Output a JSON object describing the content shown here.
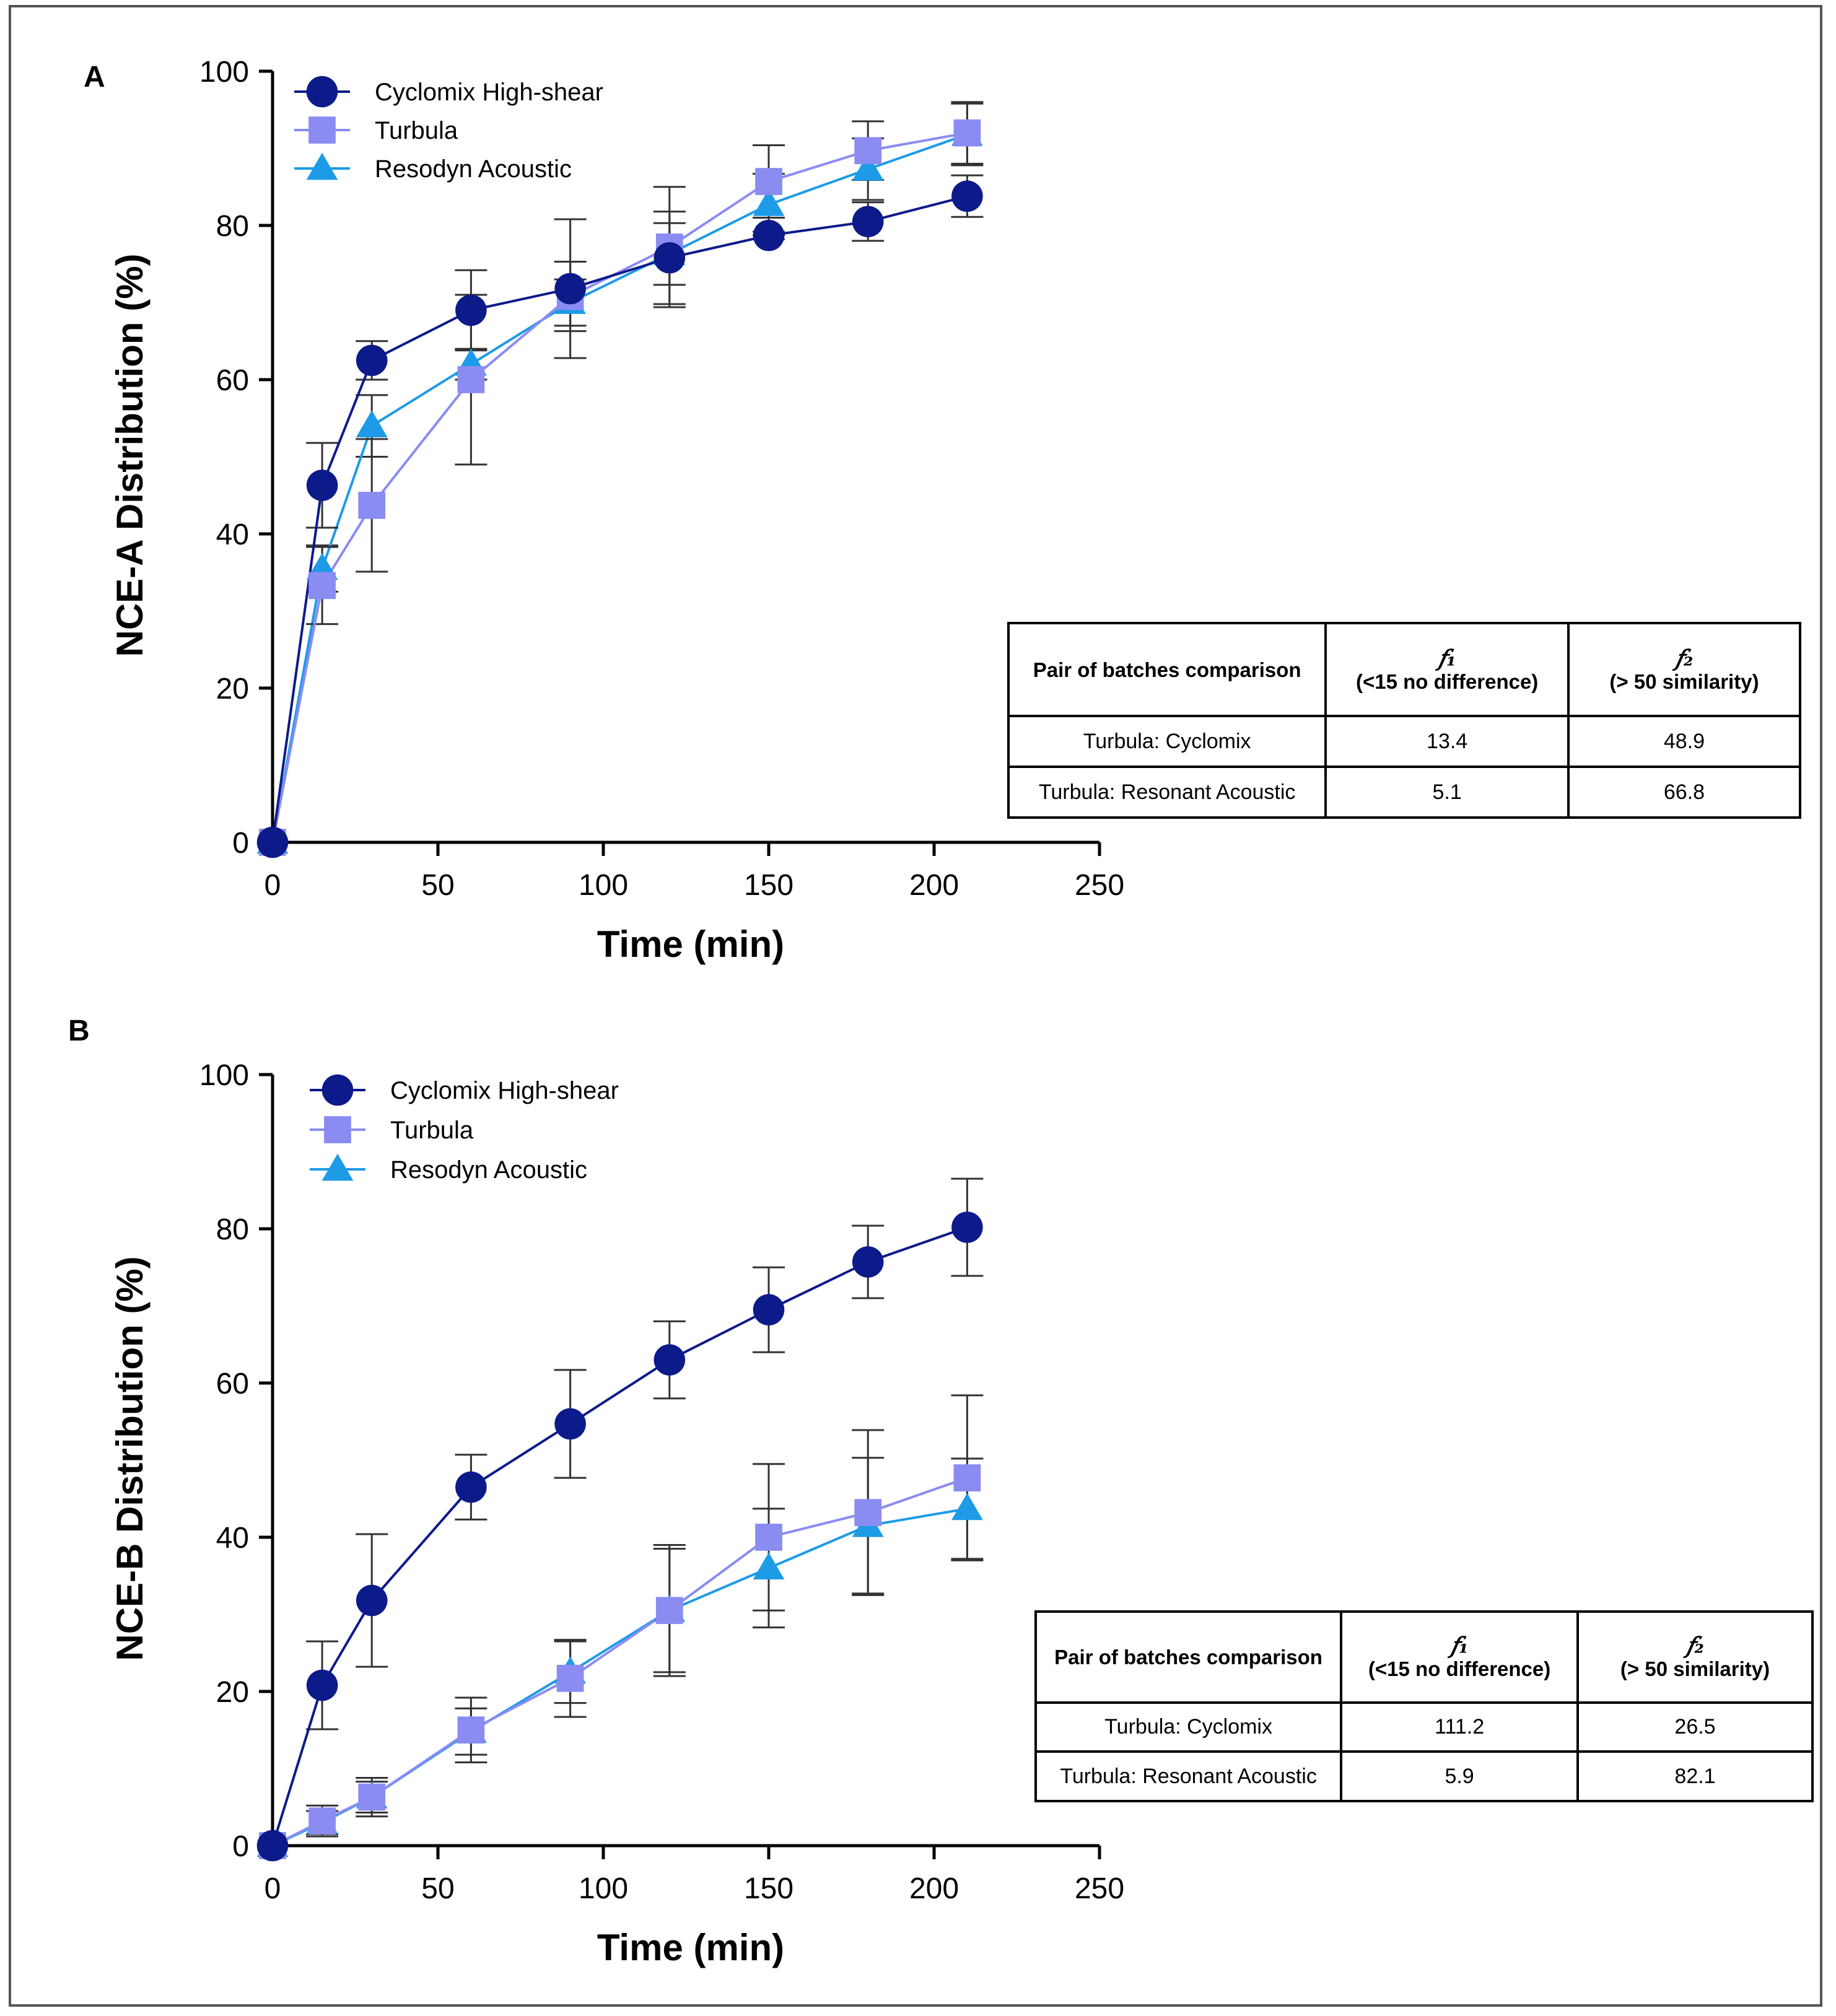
{
  "chart_data": [
    {
      "type": "line",
      "panel": "A",
      "ylabel": "NCE-A Distribution (%)",
      "xlabel": "Time (min)",
      "xlim": [
        0,
        250
      ],
      "ylim": [
        0,
        100
      ],
      "xticks": [
        0,
        50,
        100,
        150,
        200,
        250
      ],
      "yticks": [
        0,
        20,
        40,
        60,
        80,
        100
      ],
      "legend_position": "top-left",
      "series": [
        {
          "name": "Cyclomix High-shear",
          "marker": "circle",
          "color": "#0d1a8a",
          "x": [
            0,
            15,
            30,
            60,
            90,
            120,
            150,
            180,
            210
          ],
          "y": [
            0,
            46.3,
            62.5,
            69.0,
            71.8,
            75.8,
            78.7,
            80.5,
            83.8
          ],
          "err": [
            0,
            5.5,
            2.5,
            5.2,
            9.0,
            6.0,
            0.5,
            2.5,
            2.7
          ]
        },
        {
          "name": "Turbula",
          "marker": "square",
          "color": "#8a8cf2",
          "x": [
            0,
            15,
            30,
            60,
            90,
            120,
            150,
            180,
            210
          ],
          "y": [
            0,
            33.3,
            43.7,
            60.0,
            70.8,
            77.2,
            85.7,
            89.7,
            92.0
          ],
          "err": [
            0,
            5.0,
            8.6,
            11.0,
            4.5,
            7.8,
            4.7,
            3.8,
            4.0
          ]
        },
        {
          "name": "Resodyn Acoustic",
          "marker": "triangle",
          "color": "#1d9be6",
          "x": [
            0,
            15,
            30,
            60,
            90,
            120,
            150,
            180,
            210
          ],
          "y": [
            0,
            35.5,
            54.0,
            62.0,
            70.0,
            76.3,
            82.7,
            87.3,
            91.8
          ],
          "err": [
            0,
            3.0,
            4.0,
            2.0,
            3.0,
            4.0,
            4.0,
            4.0,
            4.0
          ]
        }
      ],
      "comparison_table": {
        "header": {
          "pair": "Pair of batches comparison",
          "f1_symbol": "𝑓₁",
          "f1_note": "(<15 no difference)",
          "f2_symbol": "𝑓₂",
          "f2_note": "(> 50 similarity)"
        },
        "rows": [
          {
            "pair": "Turbula: Cyclomix",
            "f1": "13.4",
            "f2": "48.9"
          },
          {
            "pair": "Turbula: Resonant Acoustic",
            "f1": "5.1",
            "f2": "66.8"
          }
        ]
      }
    },
    {
      "type": "line",
      "panel": "B",
      "ylabel": "NCE-B Distribution (%)",
      "xlabel": "Time (min)",
      "xlim": [
        0,
        250
      ],
      "ylim": [
        0,
        100
      ],
      "xticks": [
        0,
        50,
        100,
        150,
        200,
        250
      ],
      "yticks": [
        0,
        20,
        40,
        60,
        80,
        100
      ],
      "legend_position": "top-left",
      "series": [
        {
          "name": "Cyclomix High-shear",
          "marker": "circle",
          "color": "#0d1a8a",
          "x": [
            0,
            15,
            30,
            60,
            90,
            120,
            150,
            180,
            210
          ],
          "y": [
            0,
            20.8,
            31.8,
            46.5,
            54.7,
            63.0,
            69.5,
            75.7,
            80.2
          ],
          "err": [
            0,
            5.7,
            8.6,
            4.2,
            7.0,
            5.0,
            5.5,
            4.7,
            6.3
          ]
        },
        {
          "name": "Turbula",
          "marker": "square",
          "color": "#8a8cf2",
          "x": [
            0,
            15,
            30,
            60,
            90,
            120,
            150,
            180,
            210
          ],
          "y": [
            0,
            3.2,
            6.3,
            15.0,
            21.7,
            30.5,
            40.0,
            43.2,
            47.7
          ],
          "err": [
            0,
            2.0,
            2.5,
            4.2,
            5.0,
            8.5,
            9.5,
            10.7,
            10.7
          ]
        },
        {
          "name": "Resodyn Acoustic",
          "marker": "triangle",
          "color": "#1d9be6",
          "x": [
            0,
            15,
            30,
            60,
            90,
            120,
            150,
            180,
            210
          ],
          "y": [
            0,
            3.0,
            6.3,
            14.8,
            22.5,
            30.5,
            36.0,
            41.5,
            43.7
          ],
          "err": [
            0,
            1.5,
            2.0,
            3.0,
            4.0,
            8.0,
            7.7,
            8.8,
            6.5
          ]
        }
      ],
      "comparison_table": {
        "header": {
          "pair": "Pair of batches comparison",
          "f1_symbol": "𝑓₁",
          "f1_note": "(<15 no difference)",
          "f2_symbol": "𝑓₂",
          "f2_note": "(> 50 similarity)"
        },
        "rows": [
          {
            "pair": "Turbula: Cyclomix",
            "f1": "111.2",
            "f2": "26.5"
          },
          {
            "pair": "Turbula: Resonant Acoustic",
            "f1": "5.9",
            "f2": "82.1"
          }
        ]
      }
    }
  ]
}
